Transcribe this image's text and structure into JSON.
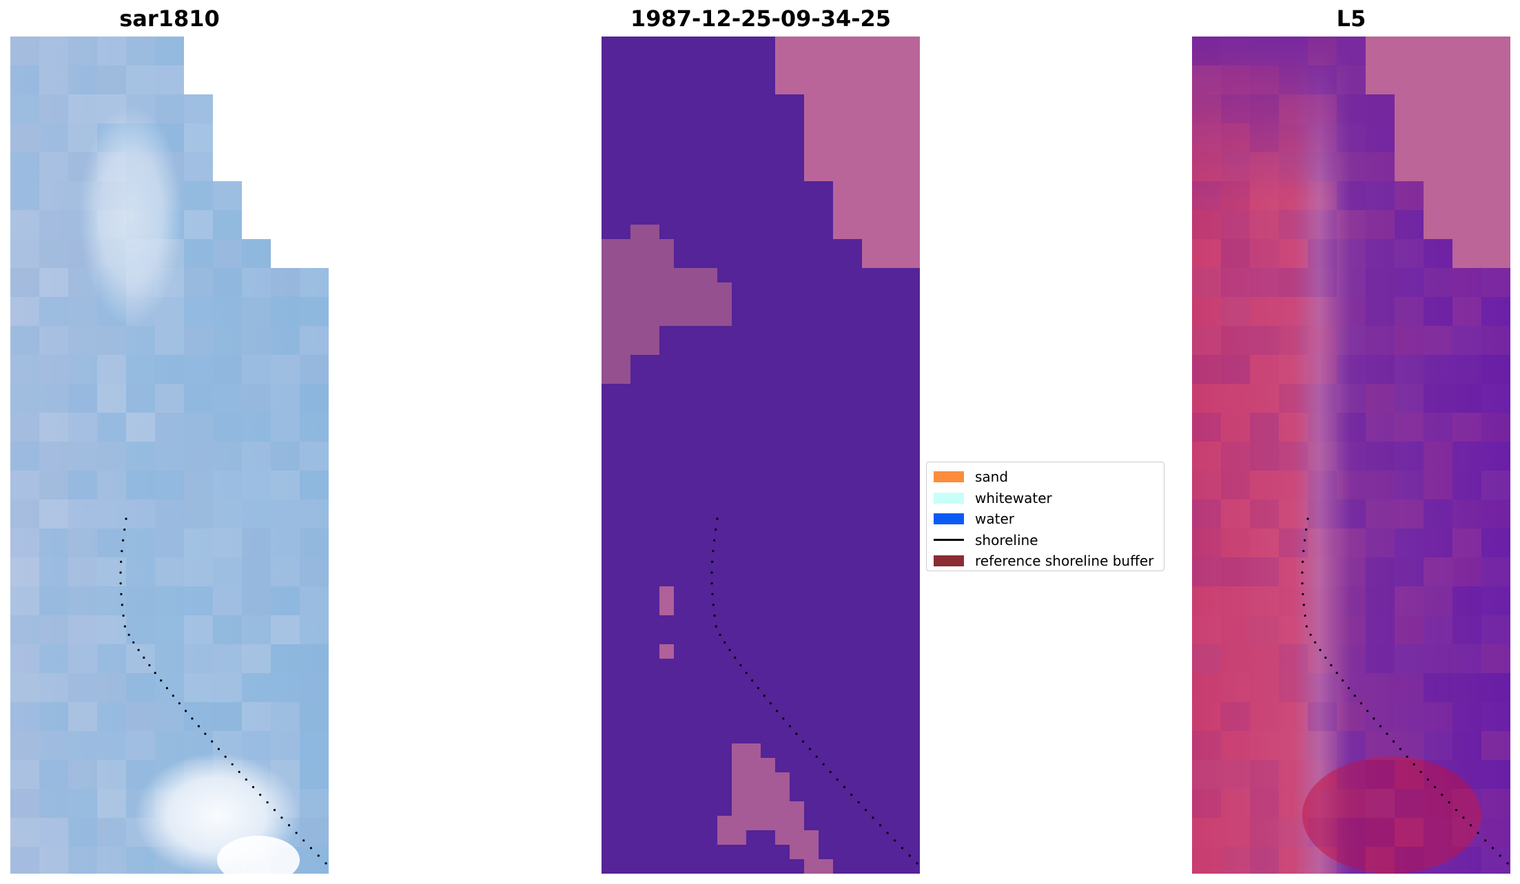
{
  "panels": [
    {
      "title": "sar1810"
    },
    {
      "title": "1987-12-25-09-34-25"
    },
    {
      "title": "L5"
    }
  ],
  "legend": {
    "items": [
      {
        "label": "sand",
        "color": "#fb8c3c",
        "kind": "patch"
      },
      {
        "label": "whitewater",
        "color": "#c8fff8",
        "kind": "patch"
      },
      {
        "label": "water",
        "color": "#0a5af5",
        "kind": "patch"
      },
      {
        "label": "shoreline",
        "color": "#000000",
        "kind": "line"
      },
      {
        "label": "reference shoreline buffer",
        "color": "#8b2c35",
        "kind": "patch"
      }
    ]
  },
  "colors": {
    "classified_background": "#542498",
    "classified_buffer": "#b9659a",
    "classified_patches": "#95508f"
  }
}
